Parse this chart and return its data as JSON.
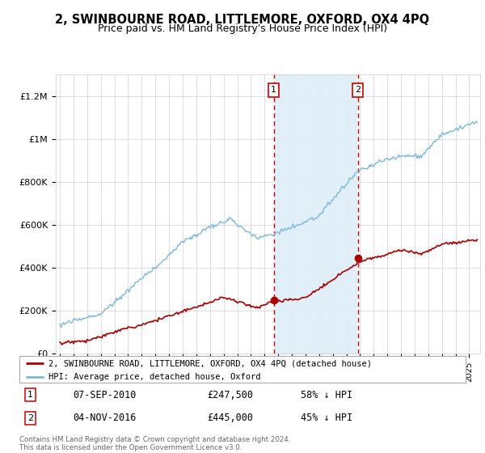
{
  "title": "2, SWINBOURNE ROAD, LITTLEMORE, OXFORD, OX4 4PQ",
  "subtitle": "Price paid vs. HM Land Registry's House Price Index (HPI)",
  "ylim": [
    0,
    1300000
  ],
  "yticks": [
    0,
    200000,
    400000,
    600000,
    800000,
    1000000,
    1200000
  ],
  "ytick_labels": [
    "£0",
    "£200K",
    "£400K",
    "£600K",
    "£800K",
    "£1M",
    "£1.2M"
  ],
  "hpi_color": "#7ab8d9",
  "hpi_fill_color": "#ddeef8",
  "price_color": "#aa0000",
  "sale1_x": 2010.67,
  "sale1_price": 247500,
  "sale1_hpi_pct": "58% ↓ HPI",
  "sale2_x": 2016.83,
  "sale2_price": 445000,
  "sale2_hpi_pct": "45% ↓ HPI",
  "sale1_date": "07-SEP-2010",
  "sale2_date": "04-NOV-2016",
  "legend_line1": "2, SWINBOURNE ROAD, LITTLEMORE, OXFORD, OX4 4PQ (detached house)",
  "legend_line2": "HPI: Average price, detached house, Oxford",
  "footnote": "Contains HM Land Registry data © Crown copyright and database right 2024.\nThis data is licensed under the Open Government Licence v3.0.",
  "background_color": "#ffffff",
  "xlim_left": 1994.7,
  "xlim_right": 2025.8
}
